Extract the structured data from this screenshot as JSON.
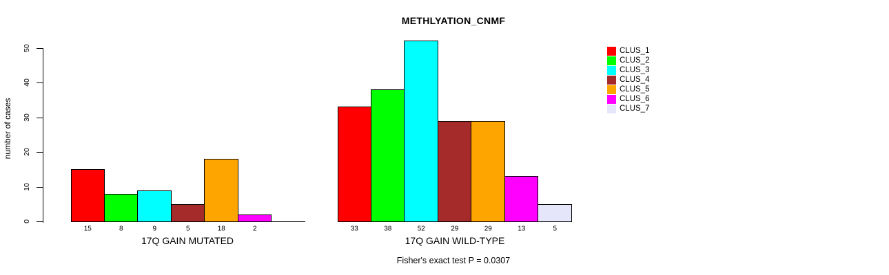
{
  "chart_data": {
    "type": "bar",
    "title": "METHLYATION_CNMF",
    "ylabel": "number of cases",
    "ylim": [
      0,
      50
    ],
    "yticks": [
      0,
      10,
      20,
      30,
      40,
      50
    ],
    "grid": false,
    "legend_position": "right",
    "clusters": [
      "CLUS_1",
      "CLUS_2",
      "CLUS_3",
      "CLUS_4",
      "CLUS_5",
      "CLUS_6",
      "CLUS_7"
    ],
    "colors": [
      "#FF0000",
      "#00FF00",
      "#00FFFF",
      "#A52A2A",
      "#FFA500",
      "#FF00FF",
      "#E6E6FA"
    ],
    "groups": [
      {
        "label": "17Q GAIN MUTATED",
        "values": [
          15,
          8,
          9,
          5,
          18,
          2,
          0
        ]
      },
      {
        "label": "17Q GAIN WILD-TYPE",
        "values": [
          33,
          38,
          52,
          29,
          29,
          13,
          5
        ]
      }
    ],
    "annotation": "Fisher's exact test P = 0.0307"
  }
}
